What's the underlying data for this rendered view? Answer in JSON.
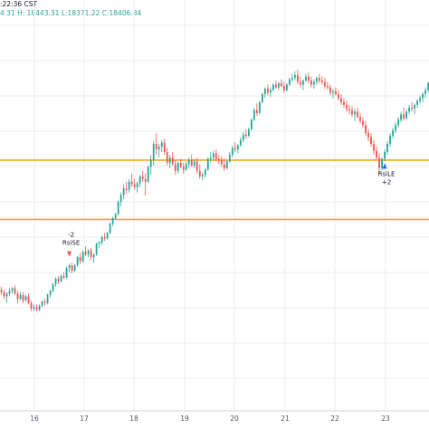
{
  "header": {
    "line1": ":22:36 CST",
    "line2_prefix": "4.31 H:",
    "high": "18443.31",
    "low_label": "L:",
    "low": "18371.22",
    "close_label": "C:",
    "close": "18406.84"
  },
  "chart_data": {
    "type": "candlestick",
    "x_tick_labels": [
      "16",
      "17",
      "18",
      "19",
      "20",
      "21",
      "22",
      "23"
    ],
    "colors": {
      "up": "#26a69a",
      "down": "#ef5350",
      "level_line": "#f5a623",
      "grid": "#e9edf1",
      "text": "#131722"
    },
    "y_range": [
      17000,
      19900
    ],
    "horizontal_levels": [
      18860,
      18420
    ],
    "signals": [
      {
        "label_top": "-2",
        "label_bottom": "RsiSE",
        "candle_index": 25,
        "direction": "short"
      },
      {
        "label_top": "RsiLE",
        "label_bottom": "+2",
        "candle_index": 141,
        "direction": "long"
      }
    ],
    "ohlc": [
      [
        17900,
        17920,
        17860,
        17880
      ],
      [
        17880,
        17900,
        17830,
        17850
      ],
      [
        17850,
        17880,
        17800,
        17870
      ],
      [
        17870,
        17910,
        17850,
        17890
      ],
      [
        17890,
        17920,
        17870,
        17910
      ],
      [
        17910,
        17930,
        17860,
        17870
      ],
      [
        17870,
        17890,
        17800,
        17830
      ],
      [
        17830,
        17880,
        17820,
        17860
      ],
      [
        17860,
        17880,
        17800,
        17820
      ],
      [
        17820,
        17860,
        17810,
        17850
      ],
      [
        17850,
        17870,
        17790,
        17800
      ],
      [
        17800,
        17820,
        17740,
        17760
      ],
      [
        17760,
        17790,
        17740,
        17770
      ],
      [
        17770,
        17790,
        17740,
        17750
      ],
      [
        17750,
        17790,
        17740,
        17780
      ],
      [
        17780,
        17820,
        17770,
        17810
      ],
      [
        17810,
        17830,
        17780,
        17800
      ],
      [
        17800,
        17870,
        17790,
        17860
      ],
      [
        17860,
        17900,
        17840,
        17890
      ],
      [
        17890,
        17950,
        17880,
        17940
      ],
      [
        17940,
        17990,
        17920,
        17980
      ],
      [
        17980,
        18000,
        17940,
        17960
      ],
      [
        17960,
        18010,
        17950,
        18000
      ],
      [
        18000,
        18030,
        17980,
        17990
      ],
      [
        17990,
        18070,
        17980,
        18060
      ],
      [
        18060,
        18090,
        18030,
        18080
      ],
      [
        18080,
        18100,
        18020,
        18040
      ],
      [
        18040,
        18090,
        18030,
        18080
      ],
      [
        18080,
        18150,
        18070,
        18140
      ],
      [
        18140,
        18170,
        18090,
        18110
      ],
      [
        18110,
        18190,
        18100,
        18180
      ],
      [
        18180,
        18220,
        18150,
        18160
      ],
      [
        18160,
        18200,
        18140,
        18190
      ],
      [
        18190,
        18210,
        18120,
        18140
      ],
      [
        18140,
        18170,
        18100,
        18160
      ],
      [
        18160,
        18250,
        18150,
        18240
      ],
      [
        18240,
        18260,
        18210,
        18250
      ],
      [
        18250,
        18300,
        18230,
        18290
      ],
      [
        18290,
        18320,
        18260,
        18280
      ],
      [
        18280,
        18330,
        18270,
        18320
      ],
      [
        18320,
        18400,
        18310,
        18390
      ],
      [
        18390,
        18440,
        18370,
        18430
      ],
      [
        18430,
        18470,
        18420,
        18460
      ],
      [
        18460,
        18560,
        18450,
        18550
      ],
      [
        18550,
        18620,
        18520,
        18600
      ],
      [
        18600,
        18680,
        18570,
        18650
      ],
      [
        18650,
        18700,
        18610,
        18640
      ],
      [
        18640,
        18720,
        18620,
        18700
      ],
      [
        18700,
        18760,
        18660,
        18680
      ],
      [
        18680,
        18720,
        18640,
        18660
      ],
      [
        18660,
        18700,
        18620,
        18690
      ],
      [
        18690,
        18750,
        18660,
        18740
      ],
      [
        18740,
        18780,
        18700,
        18720
      ],
      [
        18720,
        18760,
        18600,
        18700
      ],
      [
        18700,
        18820,
        18690,
        18810
      ],
      [
        18810,
        18900,
        18750,
        18860
      ],
      [
        18860,
        19000,
        18820,
        18980
      ],
      [
        18980,
        19060,
        18900,
        18940
      ],
      [
        18940,
        18980,
        18880,
        18960
      ],
      [
        18960,
        19010,
        18920,
        18990
      ],
      [
        18990,
        19020,
        18900,
        18920
      ],
      [
        18920,
        18950,
        18820,
        18840
      ],
      [
        18840,
        18900,
        18800,
        18880
      ],
      [
        18880,
        18920,
        18820,
        18830
      ],
      [
        18830,
        18860,
        18750,
        18780
      ],
      [
        18780,
        18850,
        18760,
        18840
      ],
      [
        18840,
        18870,
        18800,
        18810
      ],
      [
        18810,
        18840,
        18760,
        18790
      ],
      [
        18790,
        18850,
        18780,
        18830
      ],
      [
        18830,
        18880,
        18800,
        18860
      ],
      [
        18860,
        18900,
        18810,
        18820
      ],
      [
        18820,
        18870,
        18800,
        18850
      ],
      [
        18850,
        18880,
        18760,
        18780
      ],
      [
        18780,
        18830,
        18720,
        18740
      ],
      [
        18740,
        18770,
        18710,
        18750
      ],
      [
        18750,
        18800,
        18730,
        18790
      ],
      [
        18790,
        18880,
        18780,
        18870
      ],
      [
        18870,
        18920,
        18840,
        18880
      ],
      [
        18880,
        18930,
        18860,
        18910
      ],
      [
        18910,
        18940,
        18850,
        18870
      ],
      [
        18870,
        18900,
        18830,
        18860
      ],
      [
        18860,
        18890,
        18810,
        18830
      ],
      [
        18830,
        18870,
        18780,
        18800
      ],
      [
        18800,
        18860,
        18790,
        18850
      ],
      [
        18850,
        18920,
        18840,
        18900
      ],
      [
        18900,
        18970,
        18880,
        18950
      ],
      [
        18950,
        18990,
        18920,
        18940
      ],
      [
        18940,
        18980,
        18910,
        18970
      ],
      [
        18970,
        19030,
        18960,
        19010
      ],
      [
        19010,
        19070,
        18990,
        19050
      ],
      [
        19050,
        19090,
        19020,
        19040
      ],
      [
        19040,
        19100,
        19030,
        19090
      ],
      [
        19090,
        19170,
        19080,
        19160
      ],
      [
        19160,
        19250,
        19150,
        19230
      ],
      [
        19230,
        19280,
        19190,
        19210
      ],
      [
        19210,
        19300,
        19200,
        19290
      ],
      [
        19290,
        19360,
        19280,
        19350
      ],
      [
        19350,
        19400,
        19320,
        19390
      ],
      [
        19390,
        19420,
        19340,
        19360
      ],
      [
        19360,
        19400,
        19330,
        19380
      ],
      [
        19380,
        19430,
        19370,
        19420
      ],
      [
        19420,
        19450,
        19390,
        19400
      ],
      [
        19400,
        19440,
        19380,
        19430
      ],
      [
        19430,
        19460,
        19400,
        19410
      ],
      [
        19410,
        19440,
        19360,
        19380
      ],
      [
        19380,
        19430,
        19370,
        19420
      ],
      [
        19420,
        19470,
        19410,
        19460
      ],
      [
        19460,
        19500,
        19440,
        19470
      ],
      [
        19470,
        19520,
        19450,
        19490
      ],
      [
        19490,
        19530,
        19420,
        19440
      ],
      [
        19440,
        19480,
        19400,
        19420
      ],
      [
        19420,
        19460,
        19380,
        19450
      ],
      [
        19450,
        19500,
        19440,
        19480
      ],
      [
        19480,
        19510,
        19430,
        19450
      ],
      [
        19450,
        19480,
        19400,
        19420
      ],
      [
        19420,
        19460,
        19390,
        19440
      ],
      [
        19440,
        19480,
        19420,
        19470
      ],
      [
        19470,
        19500,
        19430,
        19450
      ],
      [
        19450,
        19480,
        19420,
        19440
      ],
      [
        19440,
        19470,
        19390,
        19410
      ],
      [
        19410,
        19440,
        19380,
        19400
      ],
      [
        19400,
        19420,
        19340,
        19360
      ],
      [
        19360,
        19390,
        19320,
        19370
      ],
      [
        19370,
        19400,
        19340,
        19350
      ],
      [
        19350,
        19380,
        19300,
        19320
      ],
      [
        19320,
        19350,
        19270,
        19290
      ],
      [
        19290,
        19320,
        19250,
        19270
      ],
      [
        19270,
        19300,
        19220,
        19240
      ],
      [
        19240,
        19270,
        19200,
        19230
      ],
      [
        19230,
        19260,
        19180,
        19200
      ],
      [
        19200,
        19240,
        19150,
        19220
      ],
      [
        19220,
        19250,
        19170,
        19180
      ],
      [
        19180,
        19210,
        19130,
        19150
      ],
      [
        19150,
        19180,
        19100,
        19120
      ],
      [
        19120,
        19150,
        19040,
        19060
      ],
      [
        19060,
        19090,
        19000,
        19030
      ],
      [
        19030,
        19060,
        18960,
        18980
      ],
      [
        18980,
        19010,
        18900,
        18930
      ],
      [
        18930,
        18960,
        18860,
        18880
      ],
      [
        18880,
        18910,
        18760,
        18800
      ],
      [
        18800,
        18880,
        18780,
        18870
      ],
      [
        18870,
        18940,
        18850,
        18920
      ],
      [
        18920,
        19000,
        18900,
        18980
      ],
      [
        18980,
        19060,
        18960,
        19040
      ],
      [
        19040,
        19100,
        19020,
        19080
      ],
      [
        19080,
        19140,
        19060,
        19120
      ],
      [
        19120,
        19180,
        19100,
        19160
      ],
      [
        19160,
        19220,
        19140,
        19200
      ],
      [
        19200,
        19250,
        19150,
        19170
      ],
      [
        19170,
        19230,
        19160,
        19220
      ],
      [
        19220,
        19270,
        19200,
        19250
      ],
      [
        19250,
        19290,
        19220,
        19240
      ],
      [
        19240,
        19280,
        19200,
        19270
      ],
      [
        19270,
        19310,
        19250,
        19300
      ],
      [
        19300,
        19340,
        19280,
        19320
      ],
      [
        19320,
        19360,
        19290,
        19350
      ],
      [
        19350,
        19400,
        19320,
        19380
      ],
      [
        19380,
        19440,
        19360,
        19430
      ]
    ]
  }
}
